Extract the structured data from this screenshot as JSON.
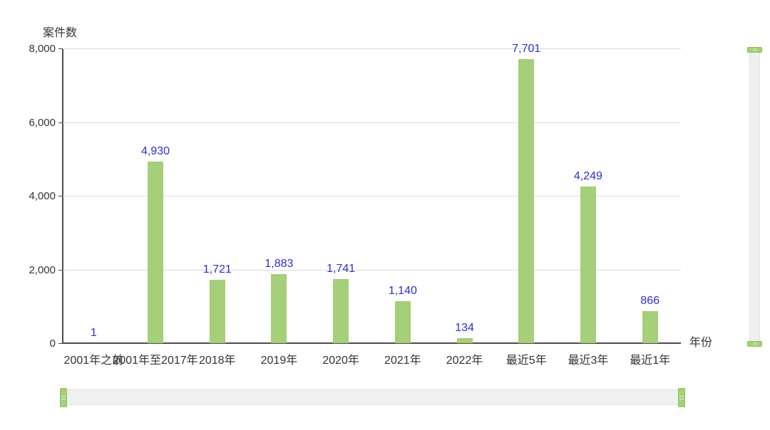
{
  "chart_data": {
    "type": "bar",
    "title": "",
    "xlabel": "年份",
    "ylabel": "案件数",
    "categories": [
      "2001年之前",
      "2001年至2017年",
      "2018年",
      "2019年",
      "2020年",
      "2021年",
      "2022年",
      "最近5年",
      "最近3年",
      "最近1年"
    ],
    "values": [
      1,
      4930,
      1721,
      1883,
      1741,
      1140,
      134,
      7701,
      4249,
      866
    ],
    "value_labels": [
      "1",
      "4,930",
      "1,721",
      "1,883",
      "1,741",
      "1,140",
      "134",
      "7,701",
      "4,249",
      "866"
    ],
    "ylim": [
      0,
      8000
    ],
    "yticks": [
      0,
      2000,
      4000,
      6000,
      8000
    ],
    "ytick_labels": [
      "0",
      "2,000",
      "4,000",
      "6,000",
      "8,000"
    ],
    "grid": true,
    "legend": "none",
    "bar_color": "#a5cf78",
    "data_label_color": "#2d2dd2"
  },
  "colors": {
    "bar": "#a5cf78",
    "data_label": "#2d2dd2",
    "axis_line": "#4c4c4c",
    "gridline": "#dcdcdc",
    "tick_text": "#333333",
    "slider_track": "#eef1ef",
    "slider_handle": "#a6d07a",
    "slider_handle_border": "#8fbf58",
    "background": "#ffffff"
  }
}
